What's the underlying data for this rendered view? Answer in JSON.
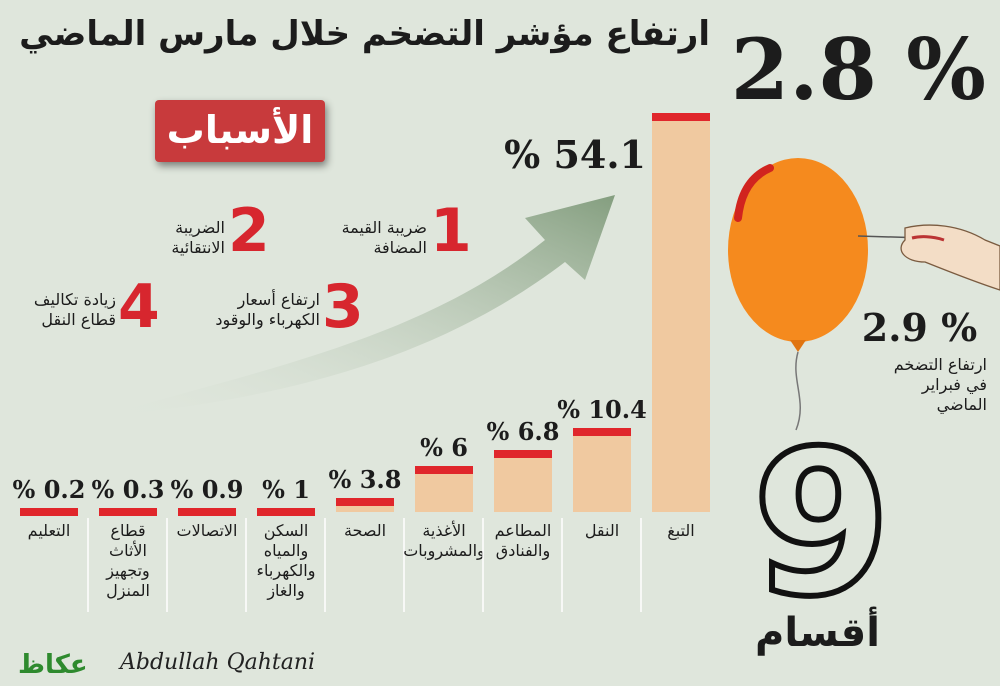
{
  "headline": "ارتفاع مؤشر التضخم خلال مارس الماضي",
  "headline_value": "2.8 %",
  "reasons_title": "الأسباب",
  "reasons": [
    {
      "num": "1",
      "text": "ضريبة القيمة\nالمضافة"
    },
    {
      "num": "2",
      "text": "الضريبة\nالانتقائية"
    },
    {
      "num": "3",
      "text": "ارتفاع أسعار\nالكهرباء والوقود"
    },
    {
      "num": "4",
      "text": "زيادة تكاليف\nقطاع النقل"
    }
  ],
  "february": {
    "value": "2.9 %",
    "label": "ارتفاع التضخم\nفي فبراير\nالماضي"
  },
  "sections": {
    "count": "9",
    "label": "أقسام"
  },
  "logo": "عكاظ",
  "signature": "Abdullah Qahtani",
  "colors": {
    "bar": "#f0c9a0",
    "bar_top": "#e0262b",
    "arrow": "#8fa88a",
    "balloon": "#f58a1e"
  },
  "chart_data": {
    "type": "bar",
    "categories": [
      "التعليم",
      "قطاع الأثاث وتجهيز المنزل",
      "الاتصالات",
      "السكن والمياه والكهرباء والغاز",
      "الصحة",
      "الأغذية والمشروبات",
      "المطاعم والفنادق",
      "النقل",
      "التبغ"
    ],
    "category_lines": [
      [
        "التعليم"
      ],
      [
        "قطاع",
        "الأثاث",
        "وتجهيز",
        "المنزل"
      ],
      [
        "الاتصالات"
      ],
      [
        "السكن",
        "والمياه",
        "والكهرباء",
        "والغاز"
      ],
      [
        "الصحة"
      ],
      [
        "الأغذية",
        "والمشروبات"
      ],
      [
        "المطاعم",
        "والفنادق"
      ],
      [
        "النقل"
      ],
      [
        "التبغ"
      ]
    ],
    "values": [
      0.2,
      0.3,
      0.9,
      1,
      3.8,
      6,
      6.8,
      10.4,
      54.1
    ],
    "value_labels": [
      "% 0.2",
      "% 0.3",
      "% 0.9",
      "% 1",
      "% 3.8",
      "% 6",
      "% 6.8",
      "% 10.4",
      "% 54.1"
    ],
    "display_heights": [
      0,
      0,
      0,
      0,
      10,
      42,
      58,
      80,
      395
    ],
    "unit": "%"
  }
}
